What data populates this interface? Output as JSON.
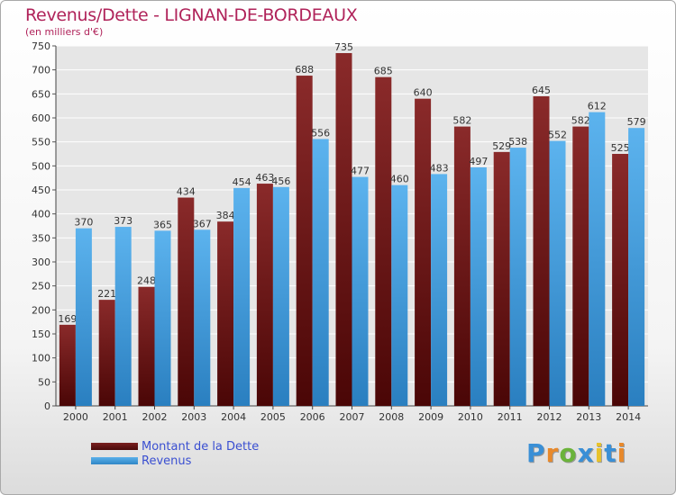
{
  "title": "Revenus/Dette - LIGNAN-DE-BORDEAUX",
  "subtitle": "(en milliers d'€)",
  "chart_data": {
    "type": "bar",
    "categories": [
      "2000",
      "2001",
      "2002",
      "2003",
      "2004",
      "2005",
      "2006",
      "2007",
      "2008",
      "2009",
      "2010",
      "2011",
      "2012",
      "2013",
      "2014"
    ],
    "series": [
      {
        "name": "Montant de la Dette",
        "color": "#7a1f1f",
        "values": [
          169,
          221,
          248,
          434,
          384,
          463,
          688,
          735,
          685,
          640,
          582,
          529,
          645,
          582,
          525
        ]
      },
      {
        "name": "Revenus",
        "color": "#4aa3df",
        "values": [
          370,
          373,
          365,
          367,
          454,
          456,
          556,
          477,
          460,
          483,
          497,
          538,
          552,
          612,
          579
        ]
      }
    ],
    "yticks": [
      0,
      50,
      100,
      150,
      200,
      250,
      300,
      350,
      400,
      450,
      500,
      550,
      600,
      650,
      700,
      750
    ],
    "ylim": [
      0,
      750
    ],
    "grid": true,
    "legend_position": "bottom-left"
  },
  "legend": {
    "debt_label": "Montant de la Dette",
    "revenue_label": "Revenus"
  },
  "logo": {
    "letters": [
      "P",
      "r",
      "o",
      "x",
      "i",
      "t",
      "i"
    ]
  }
}
